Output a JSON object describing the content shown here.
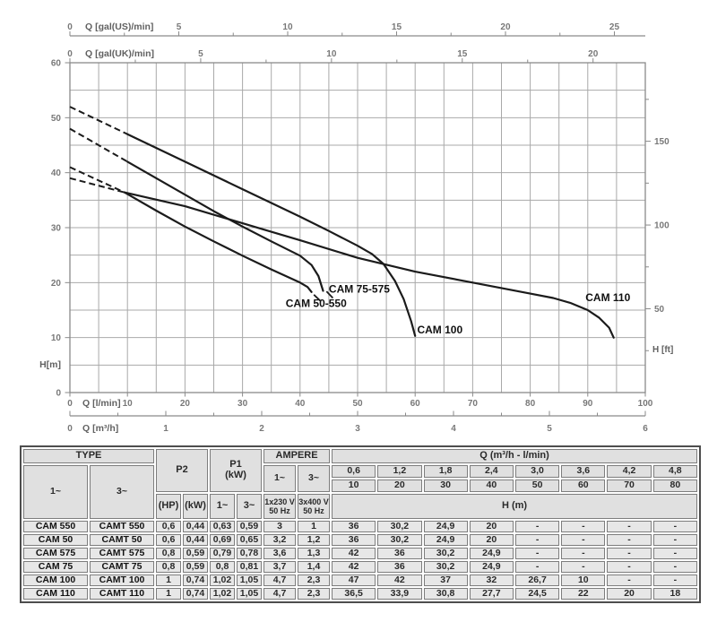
{
  "colors": {
    "curve": "#1b1b1b",
    "grid": "#a9a9a9",
    "axis": "#8a8a8a",
    "axis_text": "#787878",
    "label_text": "#616161",
    "cell_bg": "#e7e7e7",
    "header_bg": "#e0e0e0",
    "table_border": "#7d7d7d"
  },
  "chart_data": {
    "type": "line",
    "title": "",
    "xlabel": "Q [l/min]",
    "ylabel": "H[m]",
    "grid": true,
    "axes": {
      "x_lmin": {
        "label": "Q [l/min]",
        "min": 0,
        "max": 100,
        "grid_step": 5,
        "ticks": [
          0,
          10,
          20,
          30,
          40,
          50,
          60,
          70,
          80,
          90,
          100
        ]
      },
      "x_m3h": {
        "label": "Q [m³/h]",
        "min": 0,
        "max": 6,
        "minor_step": 0.5,
        "ticks": [
          0,
          1,
          2,
          3,
          4,
          5,
          6
        ],
        "lmin_per_unit": 16.667
      },
      "x_gal_us": {
        "label": "Q [gal(US)/min]",
        "ticks": [
          0,
          5,
          10,
          15,
          20,
          25
        ],
        "minor_step": 2.5,
        "lmin_per_unit": 3.785
      },
      "x_gal_uk": {
        "label": "Q [gal(UK)/min]",
        "ticks": [
          0,
          5,
          10,
          15,
          20
        ],
        "minor_step": 2.5,
        "lmin_per_unit": 4.546
      },
      "y_m": {
        "label": "H[m]",
        "min": 0,
        "max": 60,
        "grid_step": 5,
        "ticks": [
          0,
          10,
          20,
          30,
          40,
          50,
          60
        ]
      },
      "y_ft": {
        "label": "H [ft]",
        "ticks": [
          50,
          100,
          150
        ],
        "minor_step": 25,
        "m_per_unit": 0.3048
      }
    },
    "series": [
      {
        "name": "CAM 50-550",
        "dashed": [
          [
            0,
            41
          ],
          [
            9.5,
            36.4
          ]
        ],
        "solid": [
          [
            9.5,
            36.4
          ],
          [
            15,
            33.1
          ],
          [
            20,
            30.2
          ],
          [
            25,
            27.5
          ],
          [
            30,
            24.9
          ],
          [
            35,
            22.4
          ],
          [
            40,
            20
          ],
          [
            41.3,
            19.2
          ],
          [
            42,
            18.3
          ]
        ],
        "leader": [
          [
            42.4,
            17.8
          ],
          [
            43.5,
            16.7
          ]
        ],
        "label_pos": [
          42.8,
          15.6
        ]
      },
      {
        "name": "CAM 75-575",
        "dashed": [
          [
            0,
            48
          ],
          [
            10,
            42
          ]
        ],
        "solid": [
          [
            10,
            42
          ],
          [
            15,
            39
          ],
          [
            20,
            36
          ],
          [
            25,
            33
          ],
          [
            30,
            30.2
          ],
          [
            35,
            27.5
          ],
          [
            40,
            24.9
          ],
          [
            42,
            23.2
          ],
          [
            43.2,
            21.2
          ],
          [
            44,
            18.5
          ]
        ],
        "leader": [
          [
            44.6,
            18.4
          ],
          [
            45.7,
            17.2
          ]
        ],
        "label_pos": [
          50.3,
          18.2
        ]
      },
      {
        "name": "CAM 100",
        "dashed": [
          [
            0,
            52
          ],
          [
            10,
            47
          ]
        ],
        "solid": [
          [
            10,
            47
          ],
          [
            20,
            42
          ],
          [
            30,
            37
          ],
          [
            40,
            32
          ],
          [
            45,
            29.4
          ],
          [
            50,
            26.7
          ],
          [
            52.5,
            25.2
          ],
          [
            54.5,
            23.4
          ],
          [
            56.5,
            20.3
          ],
          [
            58,
            17
          ],
          [
            59.3,
            13
          ],
          [
            60,
            10.3
          ]
        ],
        "label_pos": [
          64.3,
          10.8
        ]
      },
      {
        "name": "CAM 110",
        "dashed": [
          [
            0,
            39
          ],
          [
            9.5,
            36.4
          ]
        ],
        "solid": [
          [
            9.5,
            36.4
          ],
          [
            20,
            33.9
          ],
          [
            30,
            30.8
          ],
          [
            40,
            27.7
          ],
          [
            50,
            24.5
          ],
          [
            60,
            22
          ],
          [
            70,
            20
          ],
          [
            80,
            18
          ],
          [
            84,
            17.2
          ],
          [
            87,
            16.3
          ],
          [
            90,
            15
          ],
          [
            92,
            13.6
          ],
          [
            93.7,
            11.8
          ],
          [
            94.5,
            10
          ]
        ],
        "label_pos": [
          93.5,
          16.6
        ]
      }
    ]
  },
  "table": {
    "headers": {
      "type": "TYPE",
      "single": "1~",
      "three": "3~",
      "p2": "P2",
      "p1_line1": "P1",
      "p1_line2": "(kW)",
      "ampere": "AMPERE",
      "q": "Q (m³/h - l/min)",
      "amp_single": "1~",
      "amp_three": "3~",
      "hp": "(HP)",
      "kw": "(kW)",
      "p1_single": "1~",
      "p1_three": "3~",
      "v1_line1": "1x230 V",
      "v1_line2": "50 Hz",
      "v3_line1": "3x400 V",
      "v3_line2": "50 Hz",
      "h": "H (m)"
    },
    "q_m3h": [
      "0,6",
      "1,2",
      "1,8",
      "2,4",
      "3,0",
      "3,6",
      "4,2",
      "4,8"
    ],
    "q_lmin": [
      "10",
      "20",
      "30",
      "40",
      "50",
      "60",
      "70",
      "80"
    ],
    "rows": [
      [
        "CAM 550",
        "CAMT 550",
        "0,6",
        "0,44",
        "0,63",
        "0,59",
        "3",
        "1",
        "36",
        "30,2",
        "24,9",
        "20",
        "-",
        "-",
        "-",
        "-"
      ],
      [
        "CAM 50",
        "CAMT 50",
        "0,6",
        "0,44",
        "0,69",
        "0,65",
        "3,2",
        "1,2",
        "36",
        "30,2",
        "24,9",
        "20",
        "-",
        "-",
        "-",
        "-"
      ],
      [
        "CAM 575",
        "CAMT 575",
        "0,8",
        "0,59",
        "0,79",
        "0,78",
        "3,6",
        "1,3",
        "42",
        "36",
        "30,2",
        "24,9",
        "-",
        "-",
        "-",
        "-"
      ],
      [
        "CAM 75",
        "CAMT 75",
        "0,8",
        "0,59",
        "0,8",
        "0,81",
        "3,7",
        "1,4",
        "42",
        "36",
        "30,2",
        "24,9",
        "-",
        "-",
        "-",
        "-"
      ],
      [
        "CAM 100",
        "CAMT 100",
        "1",
        "0,74",
        "1,02",
        "1,05",
        "4,7",
        "2,3",
        "47",
        "42",
        "37",
        "32",
        "26,7",
        "10",
        "-",
        "-"
      ],
      [
        "CAM 110",
        "CAMT 110",
        "1",
        "0,74",
        "1,02",
        "1,05",
        "4,7",
        "2,3",
        "36,5",
        "33,9",
        "30,8",
        "27,7",
        "24,5",
        "22",
        "20",
        "18"
      ]
    ]
  }
}
